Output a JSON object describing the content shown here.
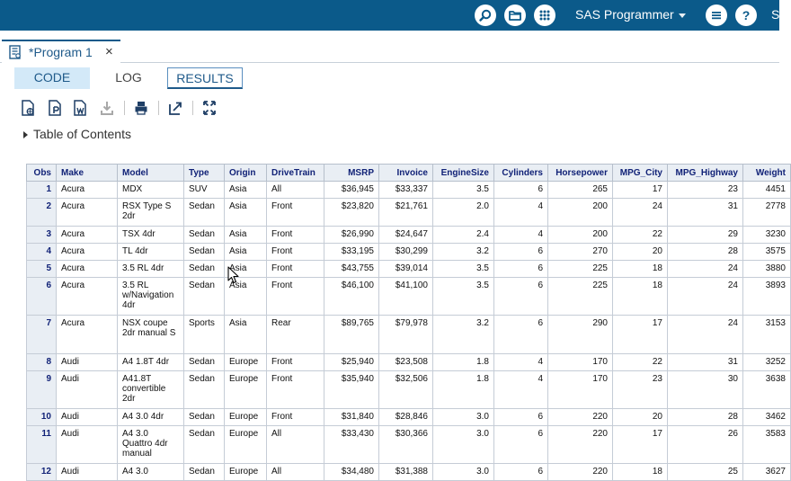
{
  "topbar": {
    "user_label": "SAS Programmer",
    "cut_label": "S",
    "icons": [
      "search-icon",
      "folder-icon",
      "apps-grid-icon",
      "menu-icon",
      "help-icon"
    ]
  },
  "program_tab": {
    "label": "*Program 1",
    "close_label": "×"
  },
  "subtabs": {
    "code": "CODE",
    "log": "LOG",
    "results": "RESULTS"
  },
  "toc": {
    "label": "Table of Contents"
  },
  "table": {
    "columns": [
      "Obs",
      "Make",
      "Model",
      "Type",
      "Origin",
      "DriveTrain",
      "MSRP",
      "Invoice",
      "EngineSize",
      "Cylinders",
      "Horsepower",
      "MPG_City",
      "MPG_Highway",
      "Weight"
    ],
    "rows": [
      [
        "1",
        "Acura",
        "MDX",
        "SUV",
        "Asia",
        "All",
        "$36,945",
        "$33,337",
        "3.5",
        "6",
        "265",
        "17",
        "23",
        "4451"
      ],
      [
        "2",
        "Acura",
        "RSX Type S 2dr",
        "Sedan",
        "Asia",
        "Front",
        "$23,820",
        "$21,761",
        "2.0",
        "4",
        "200",
        "24",
        "31",
        "2778"
      ],
      [
        "3",
        "Acura",
        "TSX 4dr",
        "Sedan",
        "Asia",
        "Front",
        "$26,990",
        "$24,647",
        "2.4",
        "4",
        "200",
        "22",
        "29",
        "3230"
      ],
      [
        "4",
        "Acura",
        "TL 4dr",
        "Sedan",
        "Asia",
        "Front",
        "$33,195",
        "$30,299",
        "3.2",
        "6",
        "270",
        "20",
        "28",
        "3575"
      ],
      [
        "5",
        "Acura",
        "3.5 RL 4dr",
        "Sedan",
        "Asia",
        "Front",
        "$43,755",
        "$39,014",
        "3.5",
        "6",
        "225",
        "18",
        "24",
        "3880"
      ],
      [
        "6",
        "Acura",
        "3.5 RL w/Navigation 4dr",
        "Sedan",
        "Asia",
        "Front",
        "$46,100",
        "$41,100",
        "3.5",
        "6",
        "225",
        "18",
        "24",
        "3893"
      ],
      [
        "7",
        "Acura",
        "NSX coupe 2dr manual S",
        "Sports",
        "Asia",
        "Rear",
        "$89,765",
        "$79,978",
        "3.2",
        "6",
        "290",
        "17",
        "24",
        "3153"
      ],
      [
        "8",
        "Audi",
        "A4 1.8T 4dr",
        "Sedan",
        "Europe",
        "Front",
        "$25,940",
        "$23,508",
        "1.8",
        "4",
        "170",
        "22",
        "31",
        "3252"
      ],
      [
        "9",
        "Audi",
        "A41.8T convertible 2dr",
        "Sedan",
        "Europe",
        "Front",
        "$35,940",
        "$32,506",
        "1.8",
        "4",
        "170",
        "23",
        "30",
        "3638"
      ],
      [
        "10",
        "Audi",
        "A4 3.0 4dr",
        "Sedan",
        "Europe",
        "Front",
        "$31,840",
        "$28,846",
        "3.0",
        "6",
        "220",
        "20",
        "28",
        "3462"
      ],
      [
        "11",
        "Audi",
        "A4 3.0 Quattro 4dr manual",
        "Sedan",
        "Europe",
        "All",
        "$33,430",
        "$30,366",
        "3.0",
        "6",
        "220",
        "17",
        "26",
        "3583"
      ],
      [
        "12",
        "Audi",
        "A4 3.0",
        "Sedan",
        "Europe",
        "All",
        "$34,480",
        "$31,388",
        "3.0",
        "6",
        "220",
        "18",
        "25",
        "3627"
      ]
    ]
  },
  "colors": {
    "topbar": "#0b5a8a",
    "header_bg": "#e9eef4",
    "header_text": "#112277",
    "code_tab_bg": "#d3e9f8"
  }
}
